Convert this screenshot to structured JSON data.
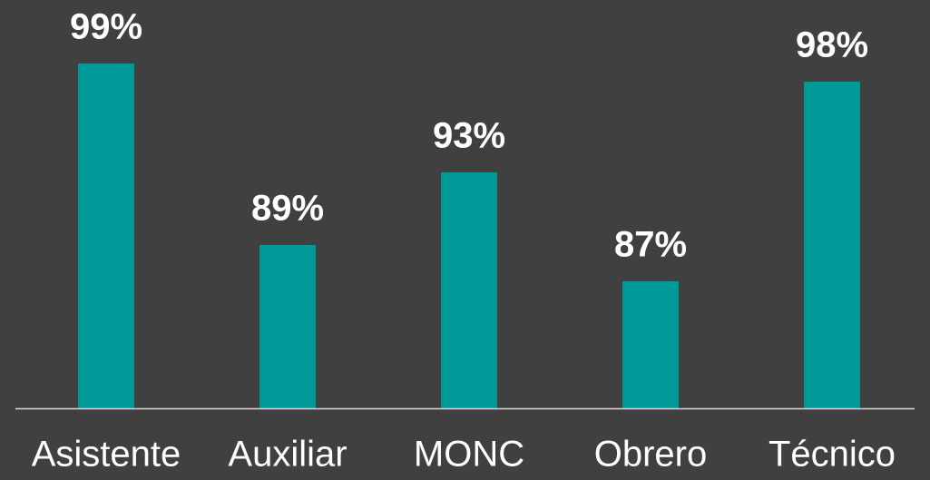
{
  "chart_data": {
    "type": "bar",
    "categories": [
      "Asistente",
      "Auxiliar",
      "MONC",
      "Obrero",
      "Técnico"
    ],
    "values": [
      99,
      89,
      93,
      87,
      98
    ],
    "value_labels": [
      "99%",
      "89%",
      "93%",
      "87%",
      "98%"
    ],
    "color": "#009999",
    "ylim": [
      80,
      100
    ]
  }
}
